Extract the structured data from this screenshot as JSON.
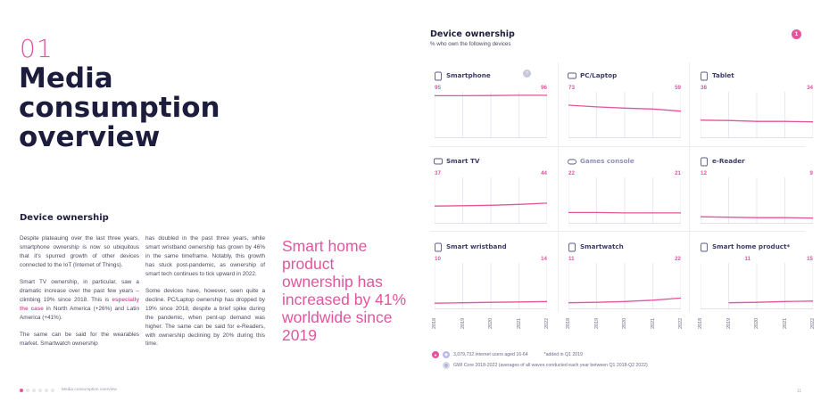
{
  "left": {
    "chapter_number": "01",
    "chapter_title": "Media consumption overview",
    "section_heading": "Device ownership",
    "col1": {
      "p1": "Despite plateauing over the last three years, smartphone ownership is now so ubiquitous that it's spurred growth of other devices connected to the IoT (Internet of Things).",
      "p2_before": "Smart TV ownership, in particular, saw a dramatic increase over the past few years – climbing 19% since 2018. This is ",
      "p2_highlight": "especially the case",
      "p2_after": " in North America (+26%) and Latin America (+41%).",
      "p3": "The same can be said for the wearables market. Smartwatch ownership"
    },
    "col2": {
      "p1": "has doubled in the past three years, while smart wristband ownership has grown by 46% in the same timeframe. Notably, this growth has stuck post-pandemic, as ownership of smart tech continues to tick upward in 2022.",
      "p2": "Some devices have, however, seen quite a decline. PC/Laptop ownership has dropped by 19% since 2018, despite a brief spike during the pandemic, when pent-up demand was higher. The same can be said for e-Readers, with ownership declining by 20% during this time."
    },
    "quote": "Smart home product ownership has increased by 41% worldwide since 2019",
    "footer_label": "Media consumption overview"
  },
  "right": {
    "title": "Device ownership",
    "subtitle": "% who own the following devices",
    "page_badge": "1",
    "years": [
      "2018",
      "2019",
      "2020",
      "2021",
      "2022"
    ],
    "notes": {
      "sample": "3,079,732 internet users aged 16-64",
      "added": "*added in Q1 2019",
      "source": "GWI Core 2018-2022 (averages of all waves conducted each year between Q1 2018-Q2 2022)"
    }
  },
  "chart_data": {
    "type": "line",
    "ylim": [
      0,
      100
    ],
    "x": [
      "2018",
      "2019",
      "2020",
      "2021",
      "2022"
    ],
    "accent_color": "#e2559e",
    "panels": [
      {
        "name": "Smartphone",
        "icon": "smartphone-icon",
        "start_label": "95",
        "end_label": "96",
        "values": [
          95,
          95,
          95.5,
          96,
          96
        ]
      },
      {
        "name": "PC/Laptop",
        "icon": "laptop-icon",
        "start_label": "73",
        "end_label": "59",
        "values": [
          73,
          69,
          66,
          64,
          59
        ]
      },
      {
        "name": "Tablet",
        "icon": "tablet-icon",
        "start_label": "38",
        "end_label": "34",
        "values": [
          38,
          37,
          35,
          35,
          34
        ]
      },
      {
        "name": "Smart TV",
        "icon": "smart-tv-icon",
        "start_label": "37",
        "end_label": "44",
        "values": [
          37,
          38,
          39,
          41,
          44
        ]
      },
      {
        "name": "Games console",
        "icon": "gamepad-icon",
        "start_label": "22",
        "end_label": "21",
        "values": [
          22,
          22,
          21,
          21,
          21
        ]
      },
      {
        "name": "e-Reader",
        "icon": "ereader-icon",
        "start_label": "12",
        "end_label": "9",
        "values": [
          12,
          11,
          10,
          10,
          9
        ]
      },
      {
        "name": "Smart wristband",
        "icon": "wristband-icon",
        "start_label": "10",
        "end_label": "14",
        "values": [
          10,
          11,
          12,
          13,
          14
        ]
      },
      {
        "name": "Smartwatch",
        "icon": "smartwatch-icon",
        "start_label": "11",
        "end_label": "22",
        "values": [
          11,
          12,
          14,
          17,
          22
        ]
      },
      {
        "name": "Smart home product*",
        "icon": "smart-home-icon",
        "start_label": "11",
        "end_label": "15",
        "values": [
          null,
          11,
          12,
          14,
          15
        ]
      }
    ]
  }
}
